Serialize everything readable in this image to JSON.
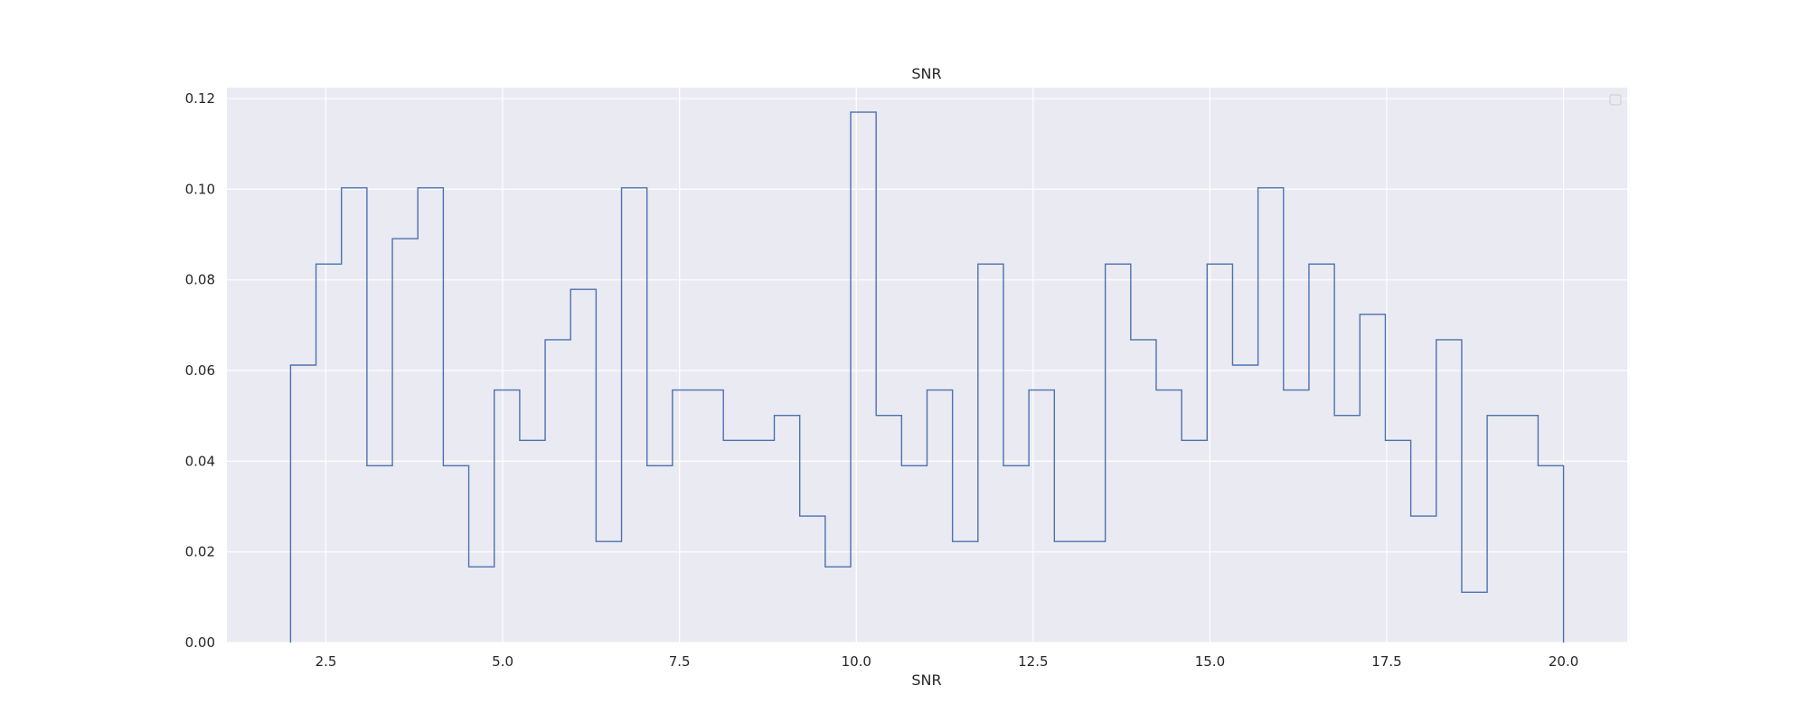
{
  "chart_data": {
    "type": "histogram-step",
    "title": "SNR",
    "xlabel": "SNR",
    "ylabel": "",
    "xlim": [
      1.1,
      20.9
    ],
    "ylim": [
      0,
      0.1224
    ],
    "xticks": [
      "2.5",
      "5.0",
      "7.5",
      "10.0",
      "12.5",
      "15.0",
      "17.5",
      "20.0"
    ],
    "yticks": [
      "0.00",
      "0.02",
      "0.04",
      "0.06",
      "0.08",
      "0.10",
      "0.12"
    ],
    "grid": true,
    "legend": "top-right (empty)",
    "colors": {
      "plot_background": "#eaeaf2",
      "grid": "#ffffff",
      "series": "#4c72b0",
      "text": "#262626"
    },
    "series": [
      {
        "bin_edges": [
          2.0,
          2.36,
          2.72,
          3.08,
          3.44,
          3.8,
          4.16,
          4.52,
          4.88,
          5.24,
          5.6,
          5.96,
          6.32,
          6.68,
          7.04,
          7.4,
          7.76,
          8.12,
          8.48,
          8.84,
          9.2,
          9.56,
          9.92,
          10.28,
          10.64,
          11.0,
          11.36,
          11.72,
          12.08,
          12.44,
          12.8,
          13.16,
          13.52,
          13.88,
          14.24,
          14.6,
          14.96,
          15.32,
          15.68,
          16.04,
          16.4,
          16.76,
          17.12,
          17.48,
          17.84,
          18.2,
          18.56,
          18.92,
          19.28,
          19.64,
          20.0
        ],
        "values": [
          0.0612,
          0.0835,
          0.1003,
          0.039,
          0.0891,
          0.1003,
          0.039,
          0.0167,
          0.0557,
          0.0446,
          0.0668,
          0.0779,
          0.0223,
          0.1003,
          0.039,
          0.0557,
          0.0557,
          0.0446,
          0.0446,
          0.0501,
          0.0279,
          0.0167,
          0.117,
          0.0501,
          0.039,
          0.0557,
          0.0223,
          0.0835,
          0.039,
          0.0557,
          0.0223,
          0.0223,
          0.0835,
          0.0668,
          0.0557,
          0.0446,
          0.0835,
          0.0612,
          0.1003,
          0.0557,
          0.0835,
          0.0501,
          0.0724,
          0.0446,
          0.0279,
          0.0668,
          0.0111,
          0.0501,
          0.0501,
          0.039
        ]
      }
    ]
  }
}
